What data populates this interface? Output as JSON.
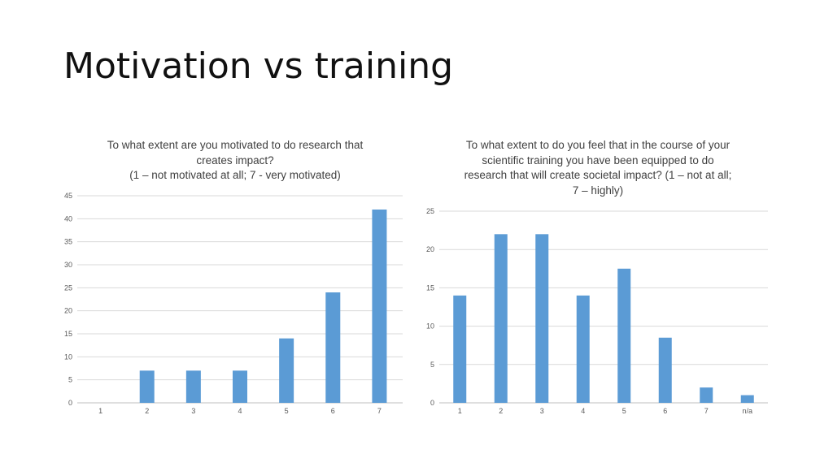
{
  "page_title": "Motivation vs training",
  "colors": {
    "bar": "#5b9bd5",
    "grid": "#d9d9d9",
    "text": "#595959"
  },
  "chart_data": [
    {
      "type": "bar",
      "title_lines": [
        "To what extent are you motivated to do research that",
        "creates impact?",
        "(1 – not motivated at all; 7 - very motivated)"
      ],
      "categories": [
        "1",
        "2",
        "3",
        "4",
        "5",
        "6",
        "7"
      ],
      "values": [
        0,
        7,
        7,
        7,
        14,
        24,
        42
      ],
      "ylim": [
        0,
        45
      ],
      "yticks": [
        0,
        5,
        10,
        15,
        20,
        25,
        30,
        35,
        40,
        45
      ],
      "grid": true,
      "xlabel": "",
      "ylabel": ""
    },
    {
      "type": "bar",
      "title_lines": [
        "To what extent to do you feel that in the course of your",
        "scientific training you have been equipped to do",
        "research that will create societal impact? (1 – not at all;",
        "7 – highly)"
      ],
      "categories": [
        "1",
        "2",
        "3",
        "4",
        "5",
        "6",
        "7",
        "n/a"
      ],
      "values": [
        14,
        22,
        22,
        14,
        17.5,
        8.5,
        2,
        1
      ],
      "ylim": [
        0,
        25
      ],
      "yticks": [
        0,
        5,
        10,
        15,
        20,
        25
      ],
      "grid": true,
      "xlabel": "",
      "ylabel": ""
    }
  ]
}
